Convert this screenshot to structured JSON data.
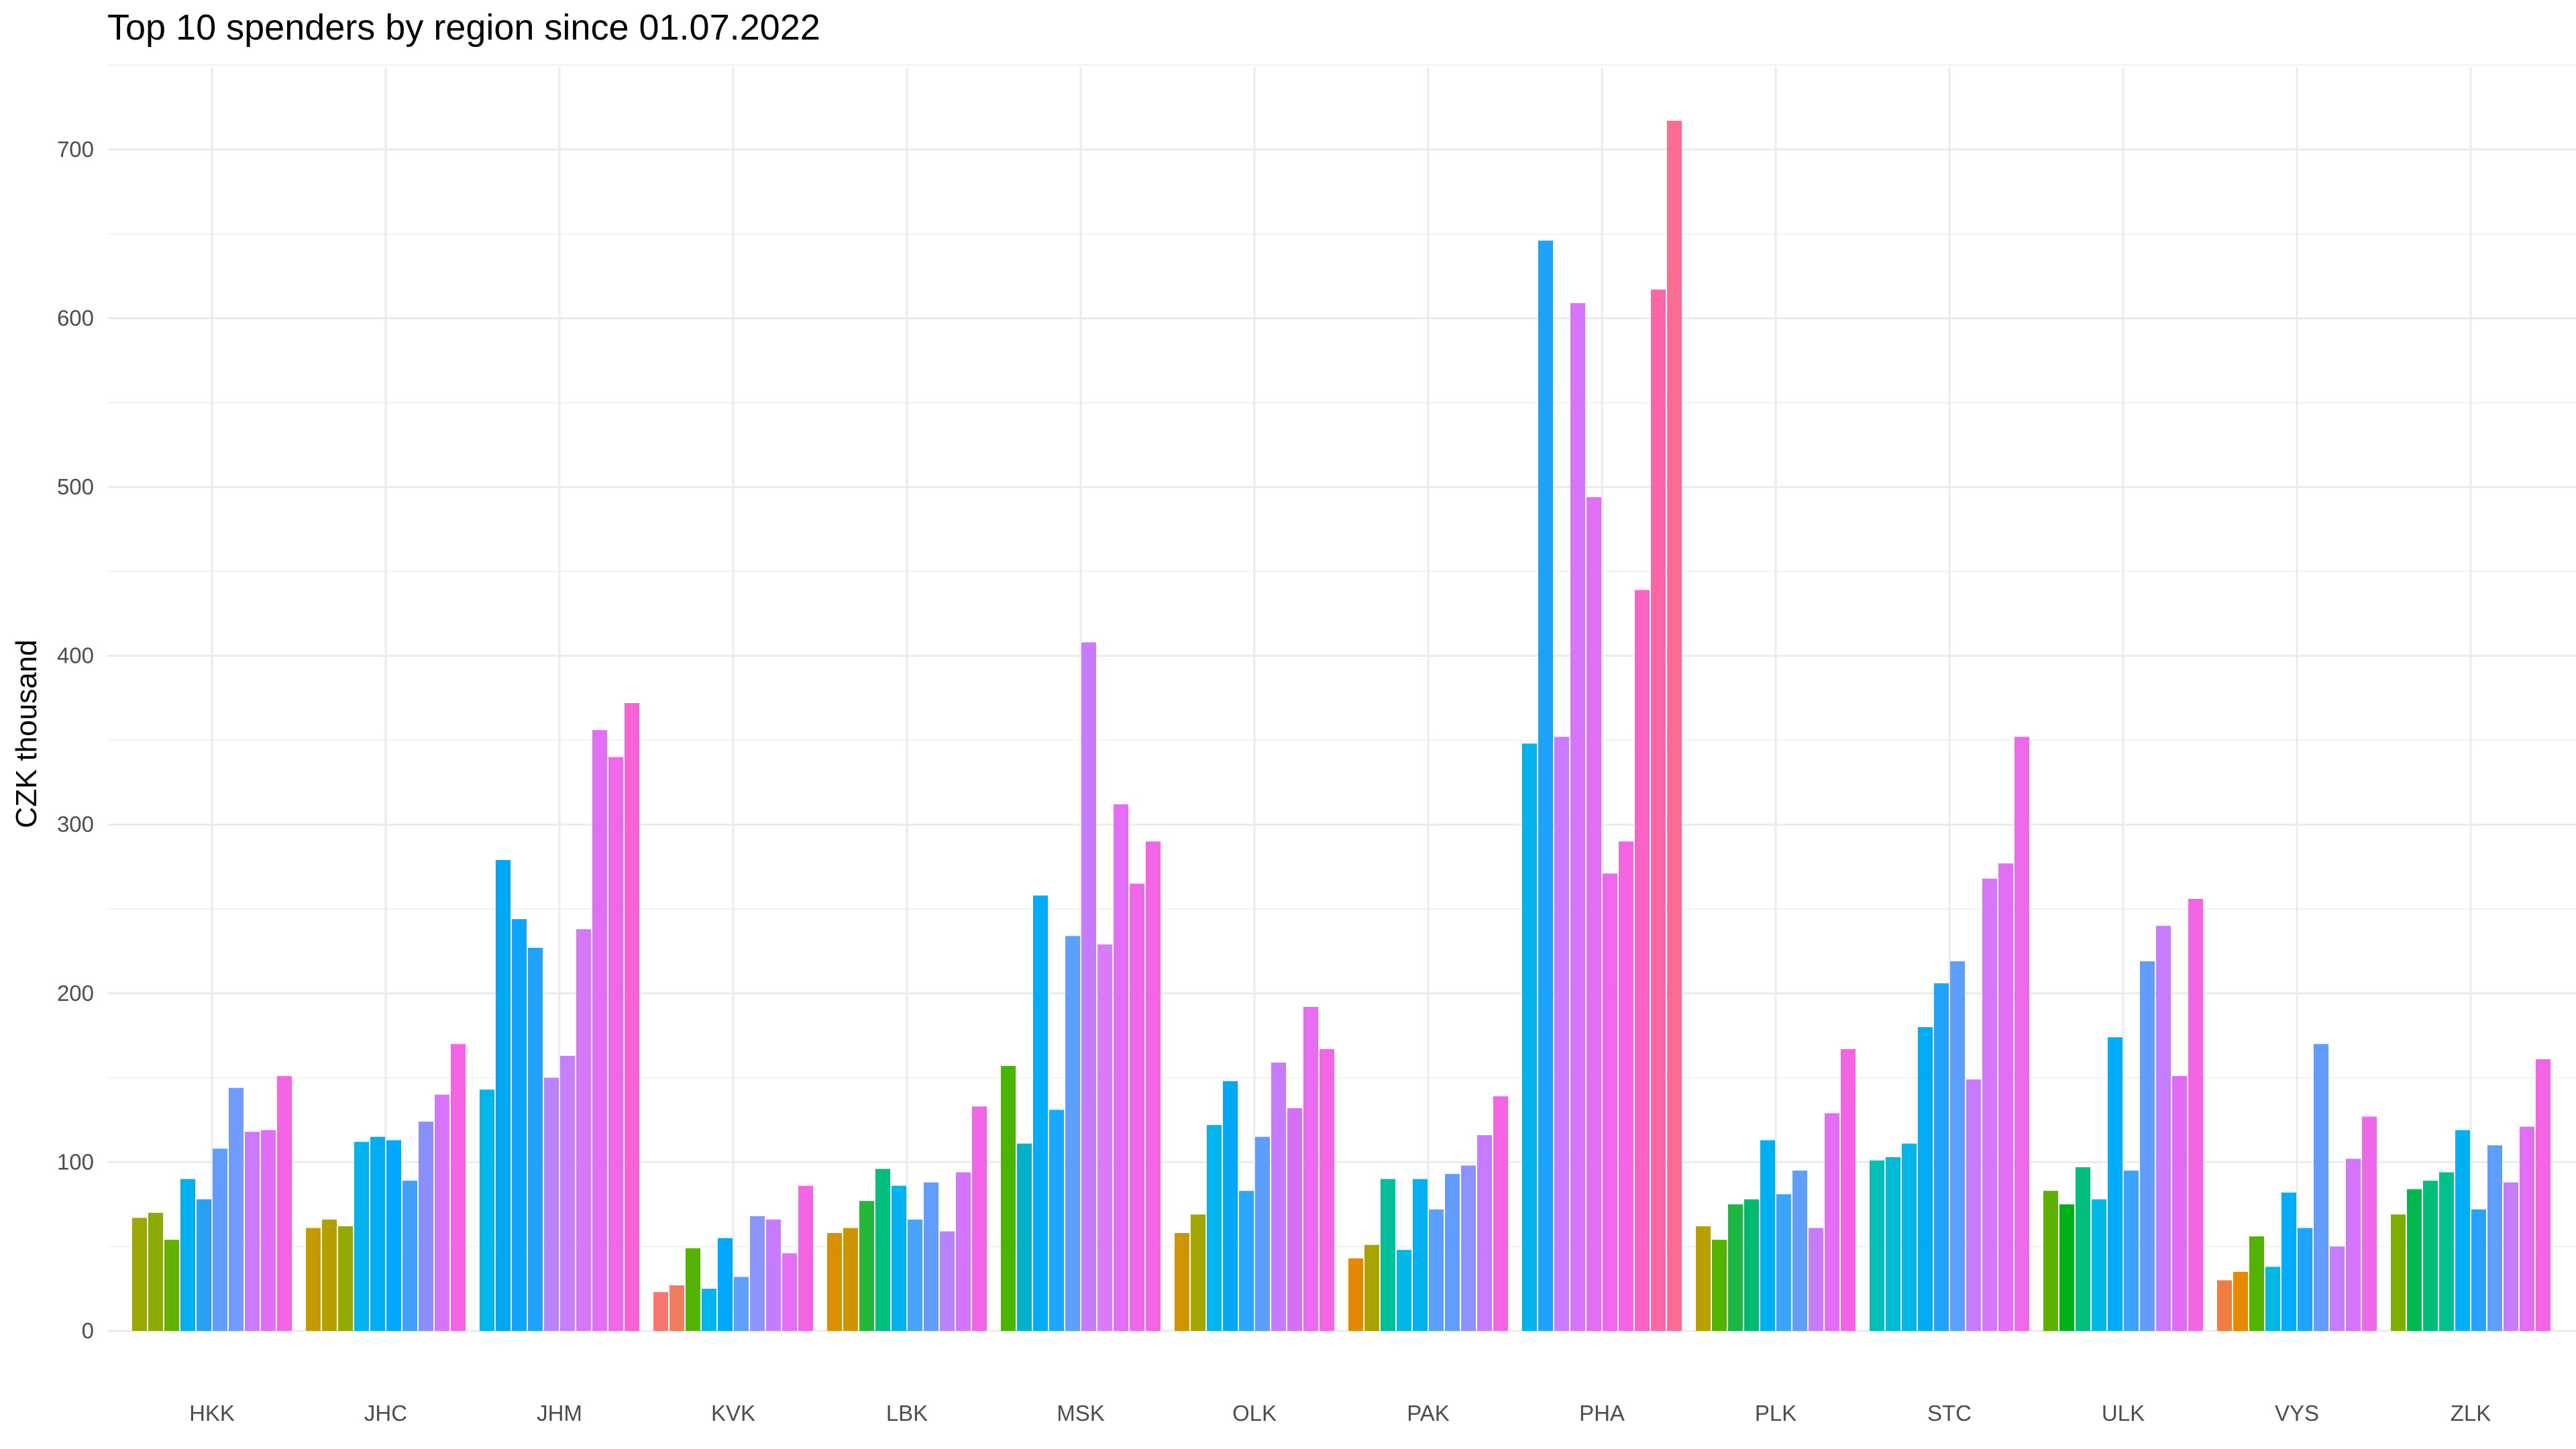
{
  "chart_data": {
    "type": "bar",
    "title": "Top 10 spenders by region since 01.07.2022",
    "xlabel": "",
    "ylabel": "CZK thousand",
    "ylim": [
      0,
      750
    ],
    "yticks": [
      0,
      100,
      200,
      300,
      400,
      500,
      600,
      700
    ],
    "grid": true,
    "legend": "none",
    "categories": [
      "HKK",
      "JHC",
      "JHM",
      "KVK",
      "LBK",
      "MSK",
      "OLK",
      "PAK",
      "PHA",
      "PLK",
      "STC",
      "ULK",
      "VYS",
      "ZLK"
    ],
    "series_per_category": 10,
    "values": {
      "HKK": [
        67,
        70,
        54,
        90,
        78,
        108,
        144,
        118,
        119,
        151
      ],
      "JHC": [
        61,
        66,
        62,
        112,
        115,
        113,
        89,
        124,
        140,
        170
      ],
      "JHM": [
        143,
        279,
        244,
        227,
        150,
        163,
        238,
        356,
        340,
        372
      ],
      "KVK": [
        23,
        27,
        49,
        25,
        55,
        32,
        68,
        66,
        46,
        86
      ],
      "LBK": [
        58,
        61,
        77,
        96,
        86,
        66,
        88,
        59,
        94,
        133
      ],
      "MSK": [
        157,
        111,
        258,
        131,
        234,
        408,
        229,
        312,
        265,
        290
      ],
      "OLK": [
        58,
        69,
        122,
        148,
        83,
        115,
        159,
        132,
        192,
        167
      ],
      "PAK": [
        43,
        51,
        90,
        48,
        90,
        72,
        93,
        98,
        116,
        139
      ],
      "PHA": [
        348,
        646,
        352,
        609,
        494,
        271,
        290,
        439,
        617,
        717
      ],
      "PLK": [
        62,
        54,
        75,
        78,
        113,
        81,
        95,
        61,
        129,
        167
      ],
      "STC": [
        101,
        103,
        111,
        180,
        206,
        219,
        149,
        268,
        277,
        352
      ],
      "ULK": [
        83,
        75,
        97,
        78,
        174,
        95,
        219,
        240,
        151,
        256
      ],
      "VYS": [
        30,
        35,
        56,
        38,
        82,
        61,
        170,
        50,
        102,
        127
      ],
      "ZLK": [
        69,
        84,
        89,
        94,
        119,
        72,
        110,
        88,
        121,
        161
      ]
    },
    "colors": {
      "HKK": [
        "#9aa800",
        "#8aac00",
        "#63b200",
        "#00b0f0",
        "#2a9df4",
        "#619cff",
        "#6f9bff",
        "#cc79ff",
        "#e36df8",
        "#f564e3"
      ],
      "JHC": [
        "#c49a00",
        "#b59f00",
        "#93aa00",
        "#00b3ef",
        "#00aef3",
        "#00a9ff",
        "#3fa0ff",
        "#8a8fff",
        "#d674fb",
        "#f464e5"
      ],
      "JHM": [
        "#00b6eb",
        "#00a8f5",
        "#0ca6ff",
        "#1ea4ff",
        "#b983ff",
        "#c47fff",
        "#d676fb",
        "#e36ef6",
        "#ef67eb",
        "#fb61d7"
      ],
      "KVK": [
        "#f8766d",
        "#f07d5e",
        "#53b400",
        "#00b4ef",
        "#00a9ff",
        "#5d9eff",
        "#8c95ff",
        "#c77cff",
        "#e66ef2",
        "#f564e3"
      ],
      "LBK": [
        "#d89000",
        "#cd9600",
        "#22b83c",
        "#00bf7d",
        "#00b2f2",
        "#48a3ff",
        "#619cff",
        "#b983ff",
        "#d575fe",
        "#f265e6"
      ],
      "MSK": [
        "#4bb400",
        "#00b2c8",
        "#00acf5",
        "#1aa7ff",
        "#5ca0ff",
        "#c77cff",
        "#d97af8",
        "#e36ef6",
        "#ef67eb",
        "#f564e3"
      ],
      "OLK": [
        "#cf9400",
        "#a3a500",
        "#00b5ee",
        "#00a8f5",
        "#2da6ff",
        "#5b9eff",
        "#c77cff",
        "#d66ff7",
        "#e86bf1",
        "#f564e3"
      ],
      "PAK": [
        "#e58700",
        "#a9a400",
        "#00bf9a",
        "#00b8e7",
        "#00b2f2",
        "#5aa1ff",
        "#619cff",
        "#8c93ff",
        "#c77cff",
        "#f564e3"
      ],
      "PHA": [
        "#00b3ea",
        "#1ca2ff",
        "#ca7bff",
        "#d674fb",
        "#e36ef6",
        "#ee67ee",
        "#f564e3",
        "#fb61c7",
        "#fd65a6",
        "#ff6c91"
      ],
      "PLK": [
        "#b7a000",
        "#53b400",
        "#1ab742",
        "#00ba70",
        "#00aef5",
        "#3ba3ff",
        "#5d9eff",
        "#c77cff",
        "#e36df7",
        "#f564e3"
      ],
      "STC": [
        "#00c0b8",
        "#00bbd5",
        "#00b6eb",
        "#00acf5",
        "#1ea4ff",
        "#5ca0ff",
        "#c77cff",
        "#d876fa",
        "#e36ef6",
        "#ef67eb"
      ],
      "ULK": [
        "#5db100",
        "#00b01a",
        "#00bf7d",
        "#00b8e5",
        "#00acfc",
        "#3ba3ff",
        "#619cff",
        "#c77cff",
        "#e06cf6",
        "#f564e3"
      ],
      "VYS": [
        "#f07d3f",
        "#e78a00",
        "#53b400",
        "#00b9e3",
        "#00acfc",
        "#1ea4ff",
        "#619cff",
        "#c77cff",
        "#d575fe",
        "#ef67eb"
      ],
      "ZLK": [
        "#7cae00",
        "#00b84e",
        "#00bd77",
        "#00c08b",
        "#00b0f6",
        "#28a3ff",
        "#5d9eff",
        "#c77cff",
        "#e36ef6",
        "#f564e3"
      ]
    }
  }
}
